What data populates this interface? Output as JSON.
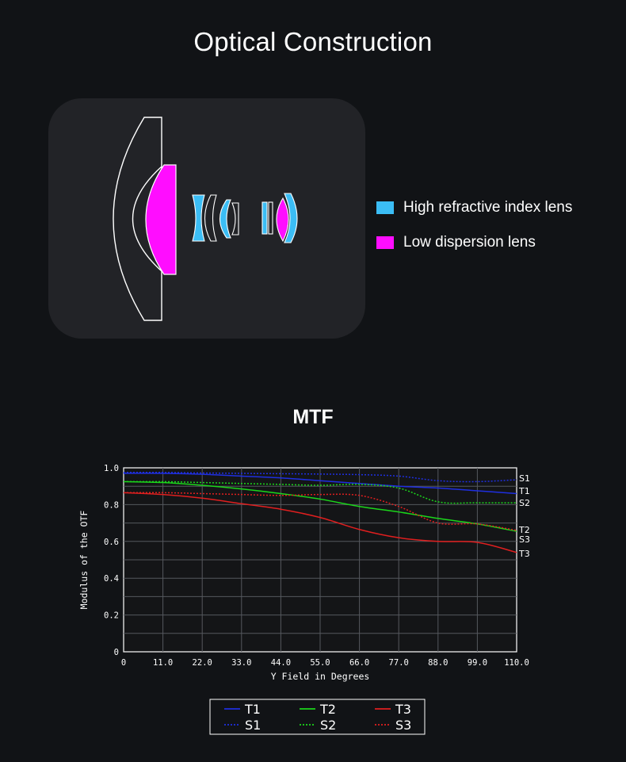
{
  "page": {
    "title": "Optical Construction",
    "mtf_title": "MTF"
  },
  "lens_legend": [
    {
      "label": "High refractive index lens",
      "color": "#3bbdf5"
    },
    {
      "label": "Low dispersion lens",
      "color": "#ff0dff"
    }
  ],
  "chart_data": {
    "type": "line",
    "title": "",
    "xlabel": "Y Field in Degrees",
    "ylabel": "Modulus of the OTF",
    "xlim": [
      0,
      110
    ],
    "ylim": [
      0,
      1.0
    ],
    "xticks": [
      "0",
      "11.0",
      "22.0",
      "33.0",
      "44.0",
      "55.0",
      "66.0",
      "77.0",
      "88.0",
      "99.0",
      "110.0"
    ],
    "yticks": [
      "0",
      "0.2",
      "0.4",
      "0.6",
      "0.8",
      "1.0"
    ],
    "grid": true,
    "x": [
      0,
      11,
      22,
      33,
      44,
      55,
      66,
      77,
      88,
      99,
      110
    ],
    "series": [
      {
        "name": "T1",
        "color": "#1f2fe0",
        "dash": false,
        "values": [
          0.97,
          0.97,
          0.965,
          0.955,
          0.945,
          0.93,
          0.915,
          0.9,
          0.89,
          0.875,
          0.86
        ]
      },
      {
        "name": "S1",
        "color": "#1f2fe0",
        "dash": true,
        "values": [
          0.975,
          0.975,
          0.972,
          0.97,
          0.968,
          0.966,
          0.963,
          0.955,
          0.93,
          0.925,
          0.935
        ]
      },
      {
        "name": "T2",
        "color": "#1bd61b",
        "dash": false,
        "values": [
          0.925,
          0.92,
          0.905,
          0.885,
          0.86,
          0.83,
          0.79,
          0.76,
          0.725,
          0.695,
          0.655
        ]
      },
      {
        "name": "S2",
        "color": "#1bd61b",
        "dash": true,
        "values": [
          0.925,
          0.925,
          0.92,
          0.915,
          0.91,
          0.905,
          0.91,
          0.89,
          0.815,
          0.81,
          0.81
        ]
      },
      {
        "name": "T3",
        "color": "#e01f1f",
        "dash": false,
        "values": [
          0.865,
          0.855,
          0.835,
          0.805,
          0.775,
          0.73,
          0.665,
          0.62,
          0.6,
          0.595,
          0.54
        ]
      },
      {
        "name": "S3",
        "color": "#e01f1f",
        "dash": true,
        "values": [
          0.865,
          0.865,
          0.86,
          0.855,
          0.85,
          0.855,
          0.85,
          0.79,
          0.7,
          0.695,
          0.66
        ]
      }
    ],
    "end_labels": [
      "S1",
      "T1",
      "S2",
      "T2",
      "S3",
      "T3"
    ],
    "legend": {
      "placement": "bottom",
      "entries": [
        "T1",
        "T2",
        "T3",
        "S1",
        "S2",
        "S3"
      ]
    }
  }
}
